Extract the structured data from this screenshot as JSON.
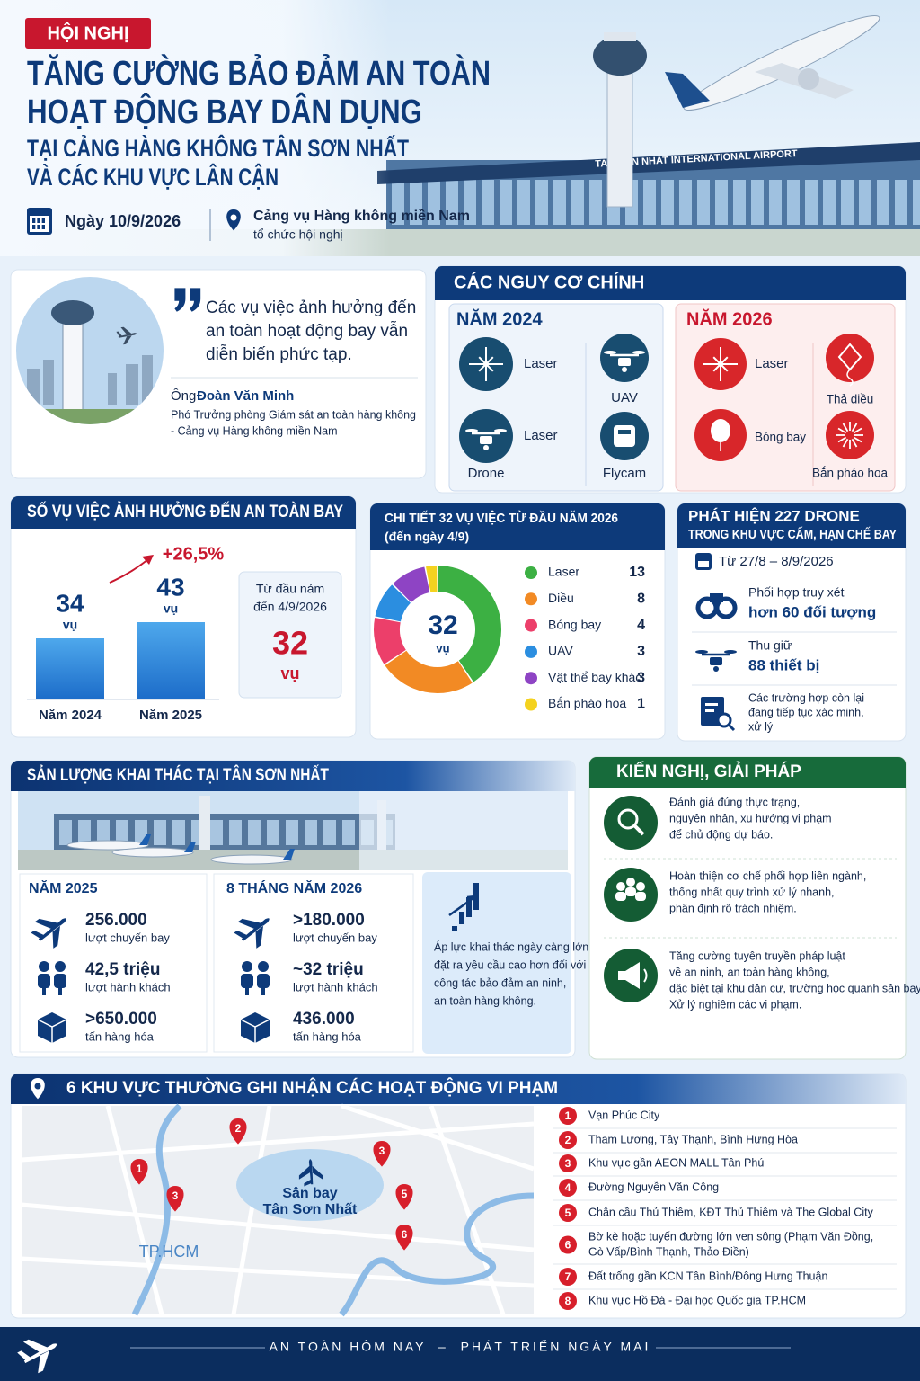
{
  "header": {
    "badge": "HỘI NGHỊ",
    "title": [
      "TĂNG CƯỜNG BẢO ĐẢM AN TOÀN",
      "HOẠT ĐỘNG BAY DÂN DỤNG"
    ],
    "subtitle": [
      "TẠI CẢNG HÀNG KHÔNG TÂN SƠN NHẤT",
      "VÀ CÁC KHU VỰC LÂN CẬN"
    ],
    "date": "Ngày 10/9/2026",
    "organizer": "Cảng vụ Hàng không miền Nam",
    "organizer_note": "tổ chức hội nghị",
    "airport_sign": "TAN SON NHAT INTERNATIONAL AIRPORT"
  },
  "quote": {
    "text": [
      "Các vụ việc ảnh hưởng đến",
      "an toàn hoạt động bay vẫn",
      "diễn biến phức tạp."
    ],
    "speaker_prefix": "Ông",
    "speaker_name": "Đoàn Văn Minh",
    "role": [
      "Phó Trưởng phòng Giám sát an toàn hàng không",
      "- Cảng vụ Hàng không miền Nam"
    ]
  },
  "risks": {
    "title": "CÁC NGUY CƠ CHÍNH",
    "groups": [
      {
        "year": "NĂM 2024",
        "items": [
          "Laser",
          "UAV",
          "Laser",
          "Drone",
          "Flycam"
        ]
      },
      {
        "year": "NĂM 2026",
        "items": [
          "Laser",
          "Thả diều",
          "Bóng bay",
          "Bắn pháo hoa"
        ]
      }
    ]
  },
  "incidents": {
    "type": "bar",
    "title": "SỐ VỤ VIỆC ẢNH HƯỞNG ĐẾN AN TOÀN BAY",
    "categories": [
      "Năm 2024",
      "Năm 2025"
    ],
    "values": [
      34,
      43
    ],
    "unit": "vụ",
    "change": "+26,5%",
    "ytd_label": [
      "Từ đầu nảm",
      "đến 4/9/2026"
    ],
    "ytd_value": 32,
    "ytd_unit": "vụ"
  },
  "breakdown": {
    "type": "pie",
    "title": "CHI TIẾT 32 VỤ VIỆC TỪ ĐẦU NĂM 2026",
    "subtitle": "(đến ngày 4/9)",
    "total": 32,
    "total_unit": "vụ",
    "categories": [
      "Laser",
      "Diều",
      "Bóng bay",
      "UAV",
      "Vật thể bay khác",
      "Bắn pháo hoa"
    ],
    "values": [
      13,
      8,
      4,
      3,
      3,
      1
    ],
    "colors": [
      "#3cb043",
      "#f28a24",
      "#ec3f6a",
      "#2b8ee0",
      "#8e44c4",
      "#f4d21f"
    ]
  },
  "drones": {
    "title": "PHÁT HIỆN 227 DRONE",
    "subtitle": "TRONG KHU VỰC CẤM, HẠN CHẾ BAY",
    "period": "Từ 27/8 – 8/9/2026",
    "items": [
      {
        "lines": [
          "Phối hợp truy xét"
        ],
        "highlight": "hơn 60 đối tượng"
      },
      {
        "lines": [
          "Thu giữ"
        ],
        "highlight": "88 thiết bị"
      },
      {
        "lines": [
          "Các trường hợp còn lại",
          "đang tiếp tục xác minh,",
          "xử lý"
        ]
      }
    ]
  },
  "traffic": {
    "title": "SẢN LƯỢNG KHAI THÁC TẠI TÂN SƠN NHẤT",
    "periods": [
      {
        "label": "NĂM 2025",
        "stats": [
          {
            "value": "256.000",
            "unit": "lượt chuyến bay"
          },
          {
            "value": "42,5 triệu",
            "unit": "lượt hành khách"
          },
          {
            "value": ">650.000",
            "unit": "tấn hàng hóa"
          }
        ]
      },
      {
        "label": "8 THÁNG NĂM 2026",
        "stats": [
          {
            "value": ">180.000",
            "unit": "lượt chuyến bay"
          },
          {
            "value": "~32 triệu",
            "unit": "lượt hành khách"
          },
          {
            "value": "436.000",
            "unit": "tấn hàng hóa"
          }
        ]
      }
    ],
    "note": [
      "Áp lực khai thác ngày càng lớn,",
      "đặt ra yêu cầu cao hơn đối với",
      "công tác bảo đảm an ninh,",
      "an toàn hàng không."
    ]
  },
  "recommendations": {
    "title": "KIẾN NGHỊ, GIẢI PHÁP",
    "items": [
      [
        "Đánh giá đúng thực trạng,",
        "nguyên nhân, xu hướng vi phạm",
        "để chủ động dự báo."
      ],
      [
        "Hoàn thiện cơ chế phối hợp liên ngành,",
        "thống nhất quy trình xử lý nhanh,",
        "phân định rõ trách nhiệm."
      ],
      [
        "Tăng cường tuyên truyền pháp luật",
        "về an ninh, an toàn hàng không,",
        "đặc biệt tại khu dân cư, trường học quanh sân bay.",
        "Xử lý nghiêm các vi phạm."
      ]
    ]
  },
  "map": {
    "title": "6 KHU VỰC THƯỜNG GHI NHẬN CÁC HOẠT ĐỘNG VI PHẠM",
    "airport_label": [
      "Sân bay",
      "Tân Sơn Nhất"
    ],
    "city": "TP.HCM",
    "pins": [
      "1",
      "2",
      "3",
      "3",
      "5",
      "6"
    ],
    "items": [
      {
        "number": "1",
        "lines": [
          "Vạn Phúc City"
        ]
      },
      {
        "number": "2",
        "lines": [
          "Tham Lương, Tây Thạnh, Bình Hưng Hòa"
        ]
      },
      {
        "number": "3",
        "lines": [
          "Khu vực gần AEON MALL Tân Phú"
        ]
      },
      {
        "number": "4",
        "lines": [
          "Đường Nguyễn Văn Công"
        ]
      },
      {
        "number": "5",
        "lines": [
          "Chân cầu Thủ Thiêm, KĐT Thủ Thiêm và The Global City"
        ]
      },
      {
        "number": "6",
        "lines": [
          "Bờ kè hoặc tuyến đường lớn ven sông (Phạm Văn Đồng,",
          "Gò Vấp/Bình Thạnh, Thảo Điền)"
        ]
      },
      {
        "number": "7",
        "lines": [
          "Đất trống gần KCN Tân Bình/Đông Hưng Thuận"
        ]
      },
      {
        "number": "8",
        "lines": [
          "Khu vực Hồ Đá - Đại học Quốc gia TP.HCM"
        ]
      }
    ]
  },
  "footer": {
    "slogan": "AN TOÀN HÔM NAY  –  PHÁT TRIỂN NGÀY MAI"
  }
}
